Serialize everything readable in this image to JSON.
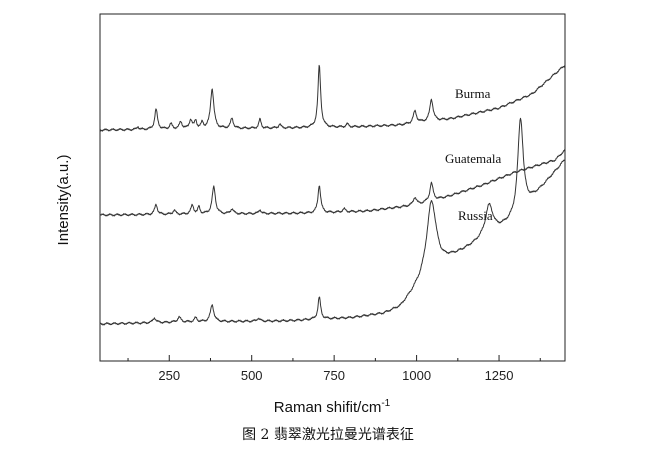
{
  "chart_data": {
    "type": "line",
    "xlabel": "Raman shifit/cm",
    "xlabel_superscript": "-1",
    "ylabel": "Intensity(a.u.)",
    "caption": "图 2 翡翠激光拉曼光谱表征",
    "xlim": [
      40,
      1450
    ],
    "xticks": [
      250,
      500,
      750,
      1000,
      1250
    ],
    "xtick_labels": [
      "250",
      "500",
      "750",
      "1000",
      "1250"
    ],
    "yticks_shown": false,
    "line_color": "#333333",
    "series": [
      {
        "name": "Burma",
        "baseline": [
          [
            40,
            130
          ],
          [
            300,
            129
          ],
          [
            600,
            128
          ],
          [
            800,
            127
          ],
          [
            950,
            125
          ],
          [
            1100,
            119
          ],
          [
            1250,
            108
          ],
          [
            1350,
            94
          ],
          [
            1450,
            65
          ]
        ],
        "peaks": [
          [
            155,
            3,
            3
          ],
          [
            210,
            20,
            5
          ],
          [
            255,
            5,
            5
          ],
          [
            285,
            7,
            5
          ],
          [
            315,
            9,
            5
          ],
          [
            330,
            8,
            4
          ],
          [
            350,
            6,
            4
          ],
          [
            380,
            40,
            6
          ],
          [
            440,
            10,
            5
          ],
          [
            525,
            9,
            4
          ],
          [
            585,
            4,
            4
          ],
          [
            705,
            62,
            5
          ],
          [
            790,
            3,
            5
          ],
          [
            995,
            12,
            6
          ],
          [
            1045,
            22,
            6
          ]
        ]
      },
      {
        "name": "Guatemala",
        "baseline": [
          [
            40,
            215
          ],
          [
            400,
            214
          ],
          [
            700,
            213
          ],
          [
            850,
            211
          ],
          [
            1000,
            205
          ],
          [
            1100,
            196
          ],
          [
            1200,
            185
          ],
          [
            1300,
            172
          ],
          [
            1370,
            165
          ],
          [
            1420,
            160
          ],
          [
            1450,
            150
          ]
        ],
        "peaks": [
          [
            210,
            10,
            5
          ],
          [
            265,
            4,
            5
          ],
          [
            320,
            9,
            5
          ],
          [
            340,
            7,
            4
          ],
          [
            385,
            27,
            6
          ],
          [
            440,
            5,
            5
          ],
          [
            525,
            4,
            4
          ],
          [
            705,
            28,
            5
          ],
          [
            780,
            3,
            5
          ],
          [
            995,
            8,
            6
          ],
          [
            1045,
            18,
            6
          ]
        ]
      },
      {
        "name": "Russia",
        "baseline": [
          [
            40,
            324
          ],
          [
            300,
            322
          ],
          [
            600,
            321
          ],
          [
            800,
            318
          ],
          [
            900,
            314
          ],
          [
            950,
            308
          ],
          [
            1000,
            290
          ],
          [
            1100,
            260
          ],
          [
            1200,
            240
          ],
          [
            1300,
            220
          ],
          [
            1400,
            180
          ],
          [
            1450,
            160
          ]
        ],
        "peaks": [
          [
            205,
            5,
            5
          ],
          [
            280,
            5,
            6
          ],
          [
            330,
            4,
            5
          ],
          [
            380,
            17,
            6
          ],
          [
            520,
            3,
            5
          ],
          [
            705,
            22,
            5
          ],
          [
            1045,
            75,
            18
          ],
          [
            1220,
            30,
            14
          ],
          [
            1315,
            95,
            10
          ]
        ]
      }
    ]
  }
}
